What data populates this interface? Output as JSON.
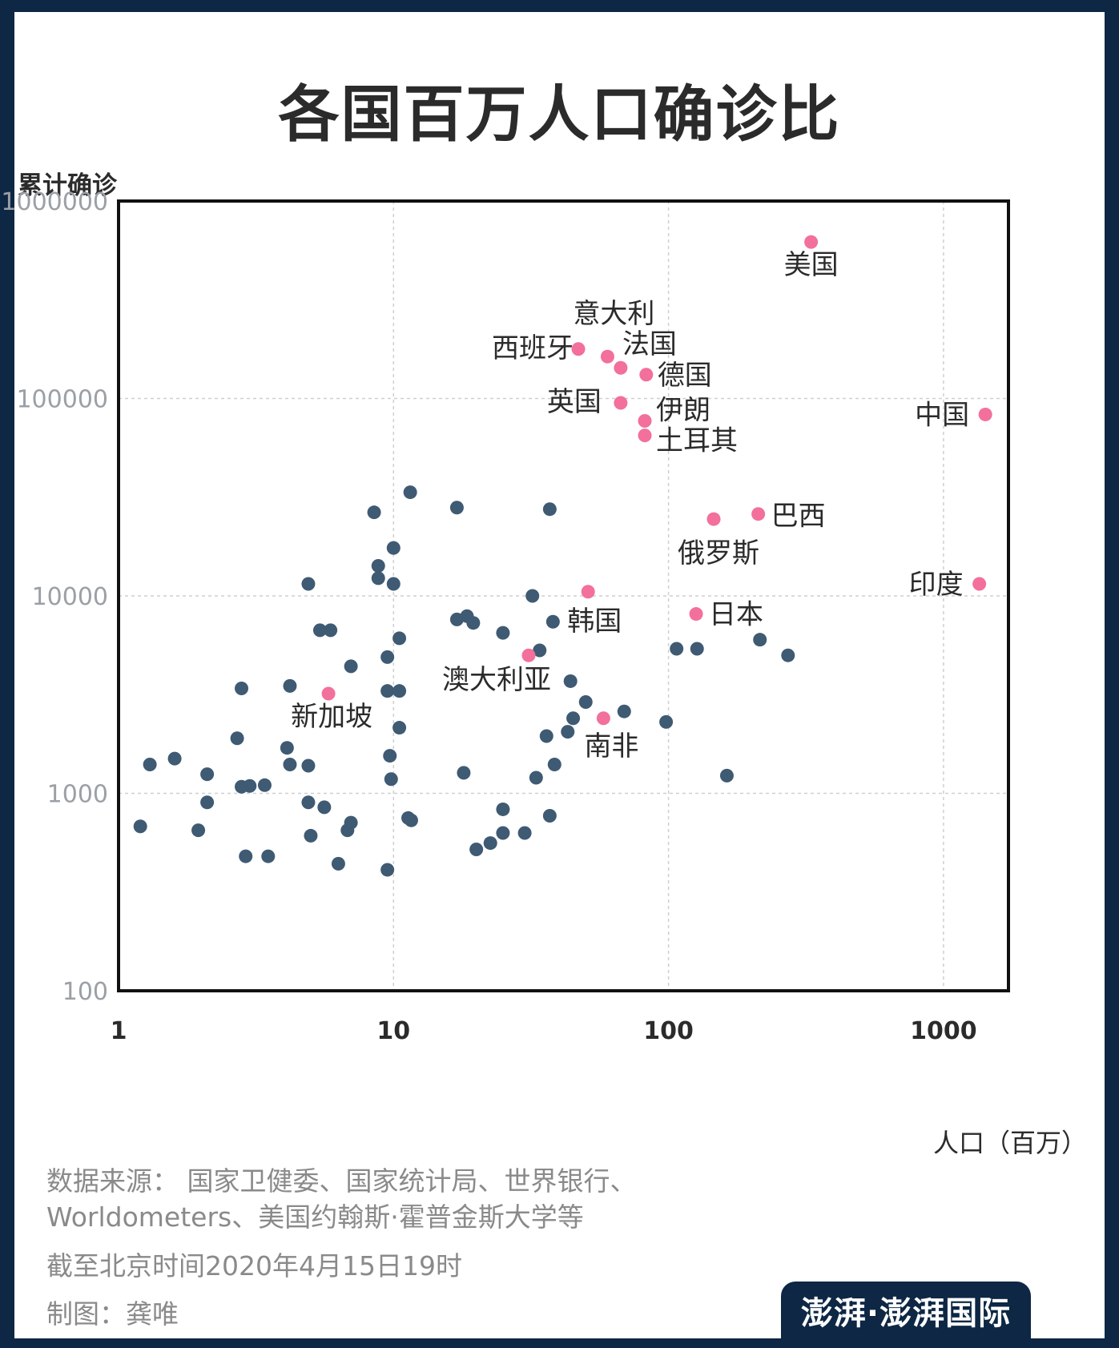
{
  "title": "各国百万人口确诊比",
  "colors": {
    "frame": "#0d2744",
    "highlight": "#f2709b",
    "other": "#3f5a73"
  },
  "footer": {
    "source_line1": "数据来源： 国家卫健委、国家统计局、世界银行、",
    "source_line2": "Worldometers、美国约翰斯·霍普金斯大学等",
    "date": "截至北京时间2020年4月15日19时",
    "credit": "制图：龚唯"
  },
  "logo": {
    "text": "澎湃·澎湃国际",
    "icon": "thepaper-logo"
  },
  "chart_data": {
    "type": "scatter",
    "title": "各国百万人口确诊比",
    "xlabel": "人口（百万）",
    "ylabel": "累计确诊",
    "x_scale": "log",
    "y_scale": "log",
    "xlim": [
      1,
      1600
    ],
    "ylim": [
      100,
      1000000
    ],
    "x_ticks": [
      "1",
      "10",
      "100",
      "1000"
    ],
    "y_ticks": [
      "100",
      "1000",
      "10000",
      "100000",
      "1000000"
    ],
    "grid": true,
    "labeled_points": [
      {
        "label": "美国",
        "x": 330,
        "y": 620000
      },
      {
        "label": "西班牙",
        "x": 47,
        "y": 178000
      },
      {
        "label": "意大利",
        "x": 60,
        "y": 163000
      },
      {
        "label": "法国",
        "x": 67,
        "y": 143000
      },
      {
        "label": "德国",
        "x": 83,
        "y": 132000
      },
      {
        "label": "英国",
        "x": 67,
        "y": 95000
      },
      {
        "label": "伊朗",
        "x": 82,
        "y": 77000
      },
      {
        "label": "土耳其",
        "x": 82,
        "y": 65000
      },
      {
        "label": "中国",
        "x": 1420,
        "y": 83000
      },
      {
        "label": "巴西",
        "x": 212,
        "y": 26000
      },
      {
        "label": "俄罗斯",
        "x": 146,
        "y": 24500
      },
      {
        "label": "印度",
        "x": 1350,
        "y": 11500
      },
      {
        "label": "韩国",
        "x": 51,
        "y": 10500
      },
      {
        "label": "日本",
        "x": 126,
        "y": 8100
      },
      {
        "label": "澳大利亚",
        "x": 31,
        "y": 5000
      },
      {
        "label": "新加坡",
        "x": 5.8,
        "y": 3200
      },
      {
        "label": "南非",
        "x": 58,
        "y": 2400
      }
    ],
    "other_points": [
      {
        "x": 11.5,
        "y": 33500
      },
      {
        "x": 8.5,
        "y": 26500
      },
      {
        "x": 17,
        "y": 28000
      },
      {
        "x": 37,
        "y": 27500
      },
      {
        "x": 10,
        "y": 17500
      },
      {
        "x": 8.8,
        "y": 14200
      },
      {
        "x": 8.8,
        "y": 12300
      },
      {
        "x": 10,
        "y": 11500
      },
      {
        "x": 4.9,
        "y": 11500
      },
      {
        "x": 32,
        "y": 10000
      },
      {
        "x": 17,
        "y": 7600
      },
      {
        "x": 18.5,
        "y": 7900
      },
      {
        "x": 19.5,
        "y": 7300
      },
      {
        "x": 38,
        "y": 7400
      },
      {
        "x": 5.4,
        "y": 6700
      },
      {
        "x": 5.9,
        "y": 6700
      },
      {
        "x": 25,
        "y": 6500
      },
      {
        "x": 10.5,
        "y": 6100
      },
      {
        "x": 34,
        "y": 5300
      },
      {
        "x": 107,
        "y": 5400
      },
      {
        "x": 127,
        "y": 5400
      },
      {
        "x": 215,
        "y": 6000
      },
      {
        "x": 272,
        "y": 5000
      },
      {
        "x": 9.5,
        "y": 4900
      },
      {
        "x": 7,
        "y": 4400
      },
      {
        "x": 4.2,
        "y": 3500
      },
      {
        "x": 2.8,
        "y": 3400
      },
      {
        "x": 44,
        "y": 3700
      },
      {
        "x": 9.5,
        "y": 3300
      },
      {
        "x": 10.5,
        "y": 3300
      },
      {
        "x": 50,
        "y": 2900
      },
      {
        "x": 69,
        "y": 2600
      },
      {
        "x": 45,
        "y": 2400
      },
      {
        "x": 98,
        "y": 2300
      },
      {
        "x": 10.5,
        "y": 2150
      },
      {
        "x": 2.7,
        "y": 1900
      },
      {
        "x": 36,
        "y": 1950
      },
      {
        "x": 43,
        "y": 2050
      },
      {
        "x": 4.1,
        "y": 1700
      },
      {
        "x": 1.6,
        "y": 1500
      },
      {
        "x": 1.3,
        "y": 1400
      },
      {
        "x": 4.2,
        "y": 1400
      },
      {
        "x": 4.9,
        "y": 1380
      },
      {
        "x": 9.7,
        "y": 1550
      },
      {
        "x": 2.1,
        "y": 1250
      },
      {
        "x": 18,
        "y": 1270
      },
      {
        "x": 33,
        "y": 1200
      },
      {
        "x": 38.5,
        "y": 1400
      },
      {
        "x": 9.8,
        "y": 1180
      },
      {
        "x": 163,
        "y": 1230
      },
      {
        "x": 2.8,
        "y": 1080
      },
      {
        "x": 3.0,
        "y": 1090
      },
      {
        "x": 3.4,
        "y": 1100
      },
      {
        "x": 2.1,
        "y": 900
      },
      {
        "x": 4.9,
        "y": 900
      },
      {
        "x": 5.6,
        "y": 850
      },
      {
        "x": 25,
        "y": 830
      },
      {
        "x": 37,
        "y": 770
      },
      {
        "x": 11.3,
        "y": 750
      },
      {
        "x": 11.6,
        "y": 730
      },
      {
        "x": 1.2,
        "y": 680
      },
      {
        "x": 1.95,
        "y": 650
      },
      {
        "x": 7,
        "y": 710
      },
      {
        "x": 6.8,
        "y": 650
      },
      {
        "x": 5.0,
        "y": 610
      },
      {
        "x": 25,
        "y": 630
      },
      {
        "x": 30,
        "y": 630
      },
      {
        "x": 22.5,
        "y": 560
      },
      {
        "x": 20,
        "y": 520
      },
      {
        "x": 2.9,
        "y": 480
      },
      {
        "x": 3.5,
        "y": 480
      },
      {
        "x": 6.3,
        "y": 440
      },
      {
        "x": 9.5,
        "y": 410
      }
    ]
  }
}
